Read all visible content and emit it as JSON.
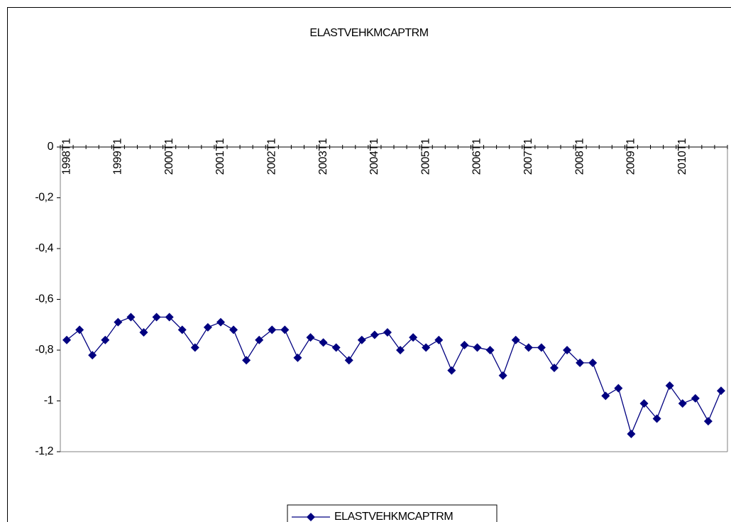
{
  "chart_data": {
    "type": "line",
    "title": "ELASTVEHKMCAPTRM",
    "categories": [
      "1998T1",
      null,
      null,
      null,
      "1999T1",
      null,
      null,
      null,
      "2000T1",
      null,
      null,
      null,
      "2001T1",
      null,
      null,
      null,
      "2002T1",
      null,
      null,
      null,
      "2003T1",
      null,
      null,
      null,
      "2004T1",
      null,
      null,
      null,
      "2005T1",
      null,
      null,
      null,
      "2006T1",
      null,
      null,
      null,
      "2007T1",
      null,
      null,
      null,
      "2008T1",
      null,
      null,
      null,
      "2009T1",
      null,
      null,
      null,
      "2010T1",
      null,
      null,
      null
    ],
    "series": [
      {
        "name": "ELASTVEHKMCAPTRM",
        "color": "#000080",
        "values": [
          -0.76,
          -0.72,
          -0.82,
          -0.76,
          -0.69,
          -0.67,
          -0.73,
          -0.67,
          -0.67,
          -0.72,
          -0.79,
          -0.71,
          -0.69,
          -0.72,
          -0.84,
          -0.76,
          -0.72,
          -0.72,
          -0.83,
          -0.75,
          -0.77,
          -0.79,
          -0.84,
          -0.76,
          -0.74,
          -0.73,
          -0.8,
          -0.75,
          -0.79,
          -0.76,
          -0.88,
          -0.78,
          -0.79,
          -0.8,
          -0.9,
          -0.76,
          -0.79,
          -0.79,
          -0.87,
          -0.8,
          -0.85,
          -0.85,
          -0.98,
          -0.95,
          -1.13,
          -1.01,
          -1.07,
          -0.94,
          -1.01,
          -0.99,
          -1.08,
          -0.96
        ]
      }
    ],
    "ylim": [
      -1.2,
      0
    ],
    "yticks": [
      {
        "value": -1.2,
        "label": "-1,2"
      },
      -1,
      {
        "value": -0.8,
        "label": "-0,8"
      },
      {
        "value": -0.6,
        "label": "-0,6"
      },
      {
        "value": -0.4,
        "label": "-0,4"
      },
      {
        "value": -0.2,
        "label": "-0,2"
      },
      0
    ],
    "legend": "bottom"
  }
}
